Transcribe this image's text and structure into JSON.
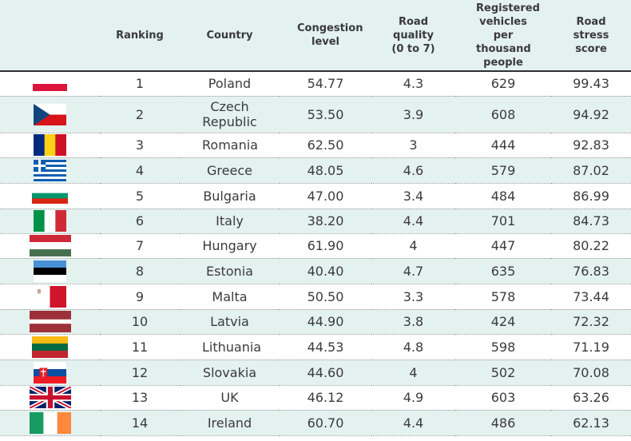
{
  "headers": {
    "ranking": "Ranking",
    "country": "Country",
    "congestion": "Congestion level",
    "road_quality": "Road quality (0 to 7)",
    "vehicles": "Registered vehicles per thousand people",
    "score": "Road stress score"
  },
  "rows": [
    {
      "rank": "1",
      "country": "Poland",
      "congestion": "54.77",
      "road": "4.3",
      "vehicles": "629",
      "score": "99.43",
      "flag": "poland"
    },
    {
      "rank": "2",
      "country": "Czech Republic",
      "congestion": "53.50",
      "road": "3.9",
      "vehicles": "608",
      "score": "94.92",
      "flag": "czech"
    },
    {
      "rank": "3",
      "country": "Romania",
      "congestion": "62.50",
      "road": "3",
      "vehicles": "444",
      "score": "92.83",
      "flag": "romania"
    },
    {
      "rank": "4",
      "country": "Greece",
      "congestion": "48.05",
      "road": "4.6",
      "vehicles": "579",
      "score": "87.02",
      "flag": "greece"
    },
    {
      "rank": "5",
      "country": "Bulgaria",
      "congestion": "47.00",
      "road": "3.4",
      "vehicles": "484",
      "score": "86.99",
      "flag": "bulgaria"
    },
    {
      "rank": "6",
      "country": "Italy",
      "congestion": "38.20",
      "road": "4.4",
      "vehicles": "701",
      "score": "84.73",
      "flag": "italy"
    },
    {
      "rank": "7",
      "country": "Hungary",
      "congestion": "61.90",
      "road": "4",
      "vehicles": "447",
      "score": "80.22",
      "flag": "hungary"
    },
    {
      "rank": "8",
      "country": "Estonia",
      "congestion": "40.40",
      "road": "4.7",
      "vehicles": "635",
      "score": "76.83",
      "flag": "estonia"
    },
    {
      "rank": "9",
      "country": "Malta",
      "congestion": "50.50",
      "road": "3.3",
      "vehicles": "578",
      "score": "73.44",
      "flag": "malta"
    },
    {
      "rank": "10",
      "country": "Latvia",
      "congestion": "44.90",
      "road": "3.8",
      "vehicles": "424",
      "score": "72.32",
      "flag": "latvia"
    },
    {
      "rank": "11",
      "country": "Lithuania",
      "congestion": "44.53",
      "road": "4.8",
      "vehicles": "598",
      "score": "71.19",
      "flag": "lithuania"
    },
    {
      "rank": "12",
      "country": "Slovakia",
      "congestion": "44.60",
      "road": "4",
      "vehicles": "502",
      "score": "70.08",
      "flag": "slovakia"
    },
    {
      "rank": "13",
      "country": "UK",
      "congestion": "46.12",
      "road": "4.9",
      "vehicles": "603",
      "score": "63.26",
      "flag": "uk"
    },
    {
      "rank": "14",
      "country": "Ireland",
      "congestion": "60.70",
      "road": "4.4",
      "vehicles": "486",
      "score": "62.13",
      "flag": "ireland"
    }
  ],
  "colors": {
    "header_bg": "#e3f1ef",
    "stripe_bg": "#e3f1ef",
    "text": "#3b3b3b"
  }
}
